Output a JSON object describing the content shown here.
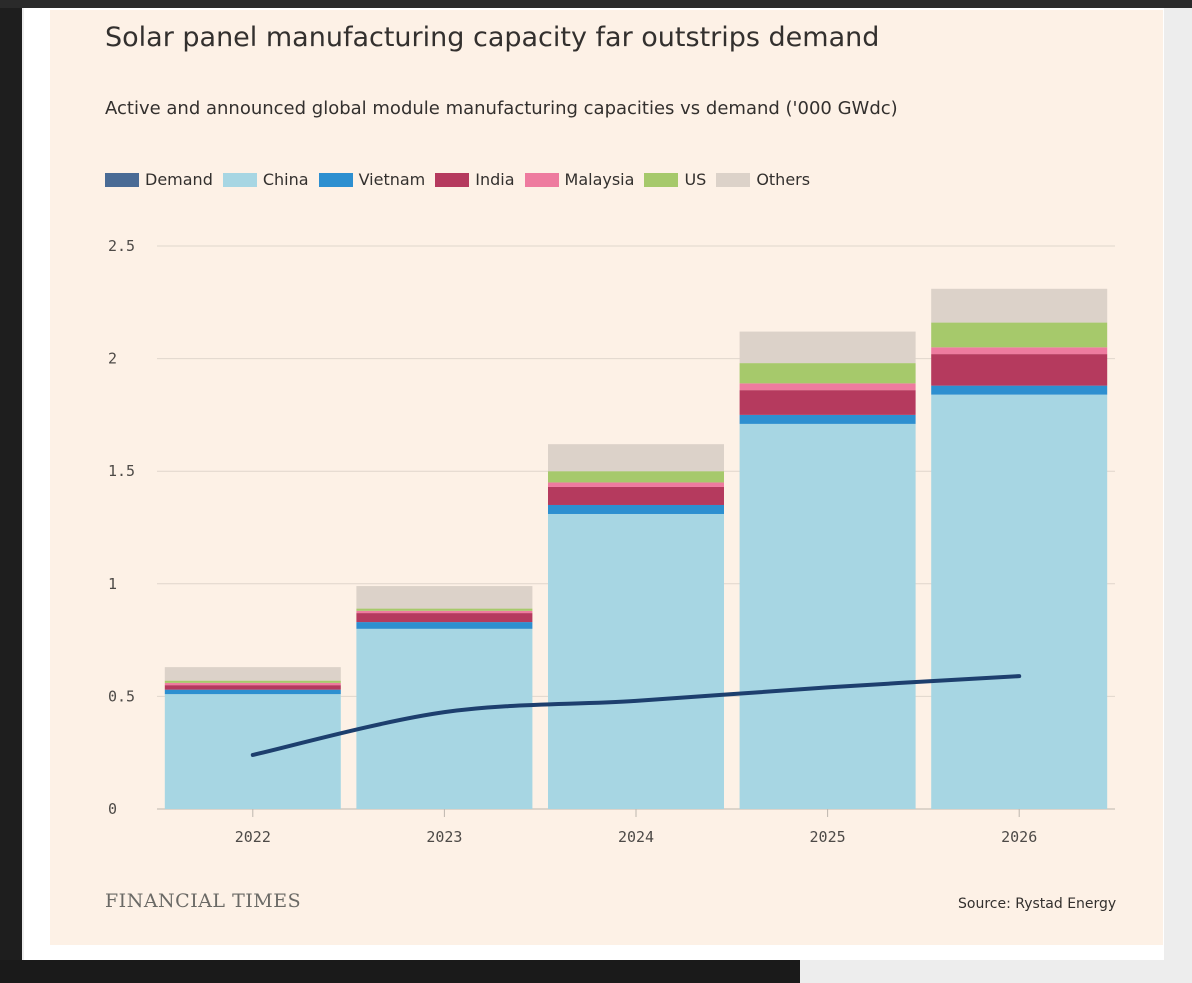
{
  "header": {
    "title": "Solar panel manufacturing capacity far outstrips demand",
    "subtitle": "Active and announced global module manufacturing capacities vs demand ('000 GWdc)"
  },
  "footer": {
    "brand": "FINANCIAL TIMES",
    "source": "Source: Rystad Energy"
  },
  "legend": [
    {
      "label": "Demand",
      "color": "#4a6b95"
    },
    {
      "label": "China",
      "color": "#a7d6e3"
    },
    {
      "label": "Vietnam",
      "color": "#2d8fd0"
    },
    {
      "label": "India",
      "color": "#b53a5e"
    },
    {
      "label": "Malaysia",
      "color": "#ee7b9f"
    },
    {
      "label": "US",
      "color": "#a6c96b"
    },
    {
      "label": "Others",
      "color": "#dcd2c9"
    }
  ],
  "chart_data": {
    "type": "bar",
    "stacked": true,
    "title": "Solar panel manufacturing capacity far outstrips demand",
    "subtitle": "Active and announced global module manufacturing capacities vs demand ('000 GWdc)",
    "categories": [
      "2022",
      "2023",
      "2024",
      "2025",
      "2026"
    ],
    "ylim": [
      0,
      2.5
    ],
    "yticks": [
      "0",
      "0.5",
      "1",
      "1.5",
      "2",
      "2.5"
    ],
    "grid": true,
    "legend_position": "top-left",
    "series": [
      {
        "name": "China",
        "color": "#a7d6e3",
        "values": [
          0.51,
          0.8,
          1.31,
          1.71,
          1.84
        ]
      },
      {
        "name": "Vietnam",
        "color": "#2d8fd0",
        "values": [
          0.02,
          0.03,
          0.04,
          0.04,
          0.04
        ]
      },
      {
        "name": "India",
        "color": "#b53a5e",
        "values": [
          0.02,
          0.04,
          0.08,
          0.11,
          0.14
        ]
      },
      {
        "name": "Malaysia",
        "color": "#ee7b9f",
        "values": [
          0.01,
          0.01,
          0.02,
          0.03,
          0.03
        ]
      },
      {
        "name": "US",
        "color": "#a6c96b",
        "values": [
          0.01,
          0.01,
          0.05,
          0.09,
          0.11
        ]
      },
      {
        "name": "Others",
        "color": "#dcd2c9",
        "values": [
          0.06,
          0.1,
          0.12,
          0.14,
          0.15
        ]
      }
    ],
    "demand_line": {
      "name": "Demand",
      "color": "#1d3f6e",
      "values": [
        0.24,
        0.43,
        0.48,
        0.54,
        0.59
      ]
    }
  }
}
